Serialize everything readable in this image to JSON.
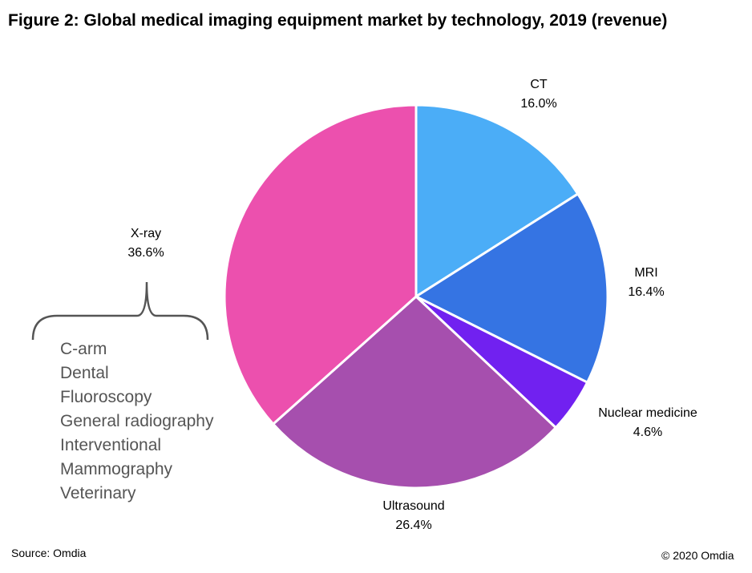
{
  "title": "Figure 2: Global medical imaging equipment market by technology, 2019 (revenue)",
  "source": "Source: Omdia",
  "copyright": "© 2020 Omdia",
  "xray_subcategories": [
    "C-arm",
    "Dental",
    "Fluoroscopy",
    "General radiography",
    "Interventional",
    "Mammography",
    "Veterinary"
  ],
  "chart_data": {
    "type": "pie",
    "title": "Figure 2: Global medical imaging equipment market by technology, 2019 (revenue)",
    "unit": "%",
    "start": "top, clockwise",
    "slices": [
      {
        "label": "CT",
        "value": 16.0,
        "display": "16.0%",
        "color": "#4BADF7"
      },
      {
        "label": "MRI",
        "value": 16.4,
        "display": "16.4%",
        "color": "#3574E3"
      },
      {
        "label": "Nuclear medicine",
        "value": 4.6,
        "display": "4.6%",
        "color": "#7121F0"
      },
      {
        "label": "Ultrasound",
        "value": 26.4,
        "display": "26.4%",
        "color": "#A64FAE"
      },
      {
        "label": "X-ray",
        "value": 36.6,
        "display": "36.6%",
        "color": "#EC50AE"
      }
    ]
  }
}
